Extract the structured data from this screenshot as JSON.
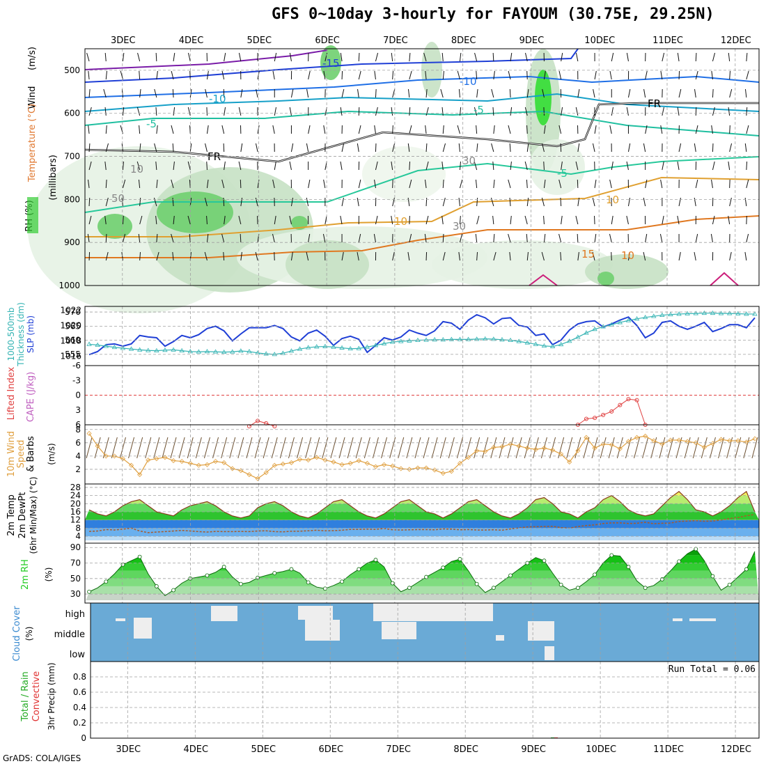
{
  "title": "GFS 0~10day 3-hourly for FAYOUM (30.75E, 29.25N)",
  "credit": "GrADS: COLA/IGES",
  "date_labels": [
    "3DEC",
    "4DEC",
    "5DEC",
    "6DEC",
    "7DEC",
    "8DEC",
    "9DEC",
    "10DEC",
    "11DEC",
    "12DEC"
  ],
  "colors": {
    "slp": "#1f3fd6",
    "thickness": "#33b3b3",
    "lifted_index": "#e04040",
    "cape": "#c060c0",
    "wind_speed": "#e0a040",
    "temp_fill_green": "#2ec42e",
    "temp_fill_yellow": "#f0f060",
    "dewpoint_fill": "#3a8ae0",
    "rh_fill": "#22cc22",
    "cloud_bg": "#6aaad6",
    "cloud_fill": "#eeeeee",
    "precip_rain": "#22aa22",
    "precip_conv": "#e03030"
  },
  "chart_data": [
    {
      "type": "heatmap",
      "panel": "upper-air",
      "ylabels_left": [
        "Wind",
        "(m/s)",
        "Temperature (°C)",
        "RH (%)"
      ],
      "ylabel": "(millibars)",
      "y_ticks": [
        500,
        600,
        700,
        800,
        900,
        1000
      ],
      "contour_labels": [
        "-15",
        "-10",
        "-10",
        "-5",
        "-5",
        "FR",
        "FR",
        "-5",
        "10",
        "10",
        "15",
        "10",
        "30",
        "10",
        "30",
        "50"
      ]
    },
    {
      "type": "line",
      "panel": "slp-thickness",
      "ylabels": [
        "1000-500mb",
        "Thickness (dm)",
        "SLP (mb)"
      ],
      "y_left_ticks": [
        555,
        560,
        565,
        570
      ],
      "y_right_ticks": [
        1016,
        1018,
        1020,
        1022
      ],
      "series": [
        {
          "name": "SLP (mb)",
          "values": [
            1016.2,
            1016.6,
            1017.5,
            1017.6,
            1017.3,
            1017.6,
            1018.7,
            1018.5,
            1018.4,
            1017.3,
            1017.9,
            1018.7,
            1018.4,
            1018.8,
            1019.6,
            1019.9,
            1019.3,
            1018.0,
            1018.9,
            1019.7,
            1019.7,
            1019.7,
            1020.0,
            1019.6,
            1018.5,
            1018.0,
            1019.0,
            1019.4,
            1018.6,
            1017.4,
            1018.3,
            1018.6,
            1018.2,
            1016.5,
            1017.4,
            1018.4,
            1018.1,
            1018.5,
            1019.4,
            1019.0,
            1018.7,
            1019.3,
            1020.5,
            1020.3,
            1019.5,
            1020.7,
            1021.4,
            1021.0,
            1020.2,
            1020.9,
            1021.0,
            1020.0,
            1019.8,
            1018.7,
            1018.9,
            1017.5,
            1018.1,
            1019.4,
            1020.2,
            1020.5,
            1020.6,
            1019.8,
            1020.2,
            1020.7,
            1021.1,
            1020.0,
            1018.4,
            1019.0,
            1020.4,
            1020.6,
            1019.9,
            1019.5,
            1019.9,
            1020.4,
            1019.2,
            1019.6,
            1020.1,
            1020.1,
            1019.7,
            1021.0
          ]
        },
        {
          "name": "Thickness (dm)",
          "values": [
            558.6,
            558.3,
            557.9,
            557.5,
            557.2,
            556.9,
            556.6,
            556.4,
            556.3,
            556.5,
            556.6,
            556.3,
            556.0,
            555.9,
            556.0,
            555.9,
            555.8,
            555.9,
            556.2,
            556.0,
            555.5,
            555.2,
            555.0,
            555.4,
            556.2,
            556.9,
            557.4,
            557.7,
            557.8,
            557.6,
            557.3,
            557.0,
            557.1,
            557.6,
            558.2,
            558.8,
            559.4,
            559.6,
            559.8,
            560.0,
            560.1,
            560.2,
            560.2,
            560.3,
            560.3,
            560.3,
            560.4,
            560.5,
            560.4,
            560.2,
            560.0,
            559.6,
            559.1,
            558.6,
            558.0,
            557.8,
            558.5,
            559.7,
            561.1,
            562.6,
            563.9,
            564.8,
            565.5,
            566.3,
            567.0,
            567.6,
            568.1,
            568.5,
            568.9,
            569.1,
            569.3,
            569.4,
            569.5,
            569.6,
            569.6,
            569.5,
            569.5,
            569.4,
            569.3,
            569.3
          ]
        }
      ]
    },
    {
      "type": "line",
      "panel": "lifted-index-cape",
      "ylabels": [
        "Lifted Index",
        "CAPE (J/kg)"
      ],
      "y_ticks": [
        "-6",
        "-3",
        "0",
        "3",
        "6"
      ],
      "series": [
        {
          "name": "Lifted Index",
          "values": [
            null,
            null,
            null,
            null,
            null,
            null,
            null,
            null,
            null,
            null,
            null,
            null,
            null,
            null,
            null,
            null,
            null,
            null,
            null,
            6.3,
            5.2,
            5.7,
            6.3,
            null,
            null,
            null,
            null,
            null,
            null,
            null,
            null,
            null,
            null,
            null,
            null,
            null,
            null,
            null,
            null,
            null,
            null,
            null,
            null,
            null,
            null,
            null,
            null,
            null,
            null,
            null,
            null,
            null,
            null,
            null,
            null,
            null,
            null,
            null,
            6.0,
            4.8,
            4.6,
            4.0,
            3.3,
            2.0,
            0.8,
            1.0,
            6.0,
            null,
            null,
            null,
            null,
            null,
            null,
            null,
            null,
            null,
            null,
            null,
            null,
            null
          ]
        }
      ]
    },
    {
      "type": "line",
      "panel": "10m-wind",
      "ylabels": [
        "10m Wind",
        "Speed",
        "& Barbs",
        "(m/s)"
      ],
      "y_ticks": [
        2,
        4,
        6,
        8
      ],
      "series": [
        {
          "name": "10m Wind Speed (m/s)",
          "values": [
            7.4,
            5.5,
            4.0,
            4.0,
            3.6,
            2.6,
            1.2,
            3.4,
            3.6,
            3.8,
            3.3,
            3.2,
            2.9,
            2.6,
            2.7,
            3.2,
            3.0,
            2.1,
            1.8,
            1.2,
            0.6,
            1.5,
            2.6,
            2.8,
            3.0,
            3.5,
            3.4,
            3.8,
            3.4,
            3.1,
            2.7,
            2.9,
            3.3,
            2.9,
            2.4,
            2.7,
            2.5,
            2.1,
            2.0,
            2.2,
            2.2,
            1.9,
            1.4,
            1.7,
            2.9,
            3.8,
            4.8,
            4.7,
            5.3,
            5.4,
            5.8,
            5.5,
            5.2,
            5.0,
            5.2,
            4.9,
            4.3,
            3.1,
            4.8,
            6.8,
            5.2,
            5.8,
            5.7,
            5.1,
            6.2,
            6.8,
            7.0,
            6.3,
            5.8,
            6.4,
            6.4,
            6.2,
            6.0,
            5.3,
            5.9,
            6.5,
            6.3,
            6.3,
            6.1,
            6.6
          ]
        }
      ]
    },
    {
      "type": "area",
      "panel": "2m-temp",
      "ylabels": [
        "2m Temp",
        "2m DewPt",
        "(6hr Min/Max) (°C)"
      ],
      "y_ticks": [
        4,
        8,
        12,
        16,
        20,
        24,
        28
      ],
      "series": [
        {
          "name": "2m Temp",
          "values": [
            17,
            15,
            14,
            16,
            19,
            21,
            22,
            19,
            16,
            15,
            14,
            17,
            19,
            20,
            21,
            19,
            16,
            14,
            13,
            14,
            18,
            20,
            21,
            19,
            16,
            14,
            13,
            15,
            18,
            21,
            22,
            19,
            16,
            14,
            13,
            15,
            18,
            21,
            22,
            19,
            16,
            15,
            13,
            15,
            18,
            21,
            22,
            19,
            16,
            14,
            13,
            15,
            18,
            22,
            23,
            20,
            16,
            15,
            13,
            16,
            18,
            22,
            24,
            21,
            17,
            15,
            14,
            15,
            19,
            23,
            26,
            22,
            17,
            16,
            14,
            16,
            19,
            23,
            26,
            16
          ]
        },
        {
          "name": "2m DewPt",
          "values": [
            6.4,
            6.6,
            7.3,
            7.1,
            7.5,
            8.0,
            6.6,
            5.8,
            6.1,
            6.3,
            6.6,
            6.9,
            6.6,
            6.3,
            6.1,
            6.4,
            6.3,
            6.3,
            6.4,
            6.3,
            6.6,
            6.7,
            6.3,
            6.2,
            6.5,
            6.5,
            6.7,
            7.0,
            6.7,
            6.8,
            7.0,
            7.4,
            7.4,
            7.5,
            7.4,
            7.8,
            7.2,
            7.1,
            7.2,
            7.3,
            7.3,
            7.2,
            7.6,
            7.5,
            7.2,
            7.3,
            7.1,
            7.1,
            7.2,
            7.0,
            7.6,
            8.1,
            8.6,
            8.7,
            8.8,
            8.9,
            8.3,
            8.0,
            8.8,
            9.3,
            9.6,
            10.3,
            10.6,
            10.6,
            10.3,
            10.4,
            10.9,
            10.2,
            10.4,
            10.5,
            11.3,
            11.5,
            11.7,
            11.4,
            11.5,
            12.0,
            12.7,
            13.2,
            14.1,
            14.7
          ]
        }
      ]
    },
    {
      "type": "area",
      "panel": "2m-rh",
      "ylabels": [
        "2m RH",
        "(%)"
      ],
      "y_ticks": [
        30,
        50,
        70,
        90
      ],
      "series": [
        {
          "name": "2m RH",
          "values": [
            33,
            38,
            46,
            56,
            68,
            73,
            78,
            56,
            40,
            28,
            35,
            44,
            50,
            52,
            54,
            58,
            65,
            52,
            43,
            45,
            51,
            54,
            57,
            59,
            62,
            57,
            45,
            39,
            37,
            41,
            46,
            55,
            62,
            70,
            74,
            65,
            44,
            33,
            38,
            45,
            52,
            58,
            64,
            72,
            75,
            60,
            43,
            32,
            38,
            46,
            54,
            62,
            70,
            77,
            73,
            57,
            42,
            35,
            38,
            46,
            55,
            70,
            80,
            79,
            65,
            47,
            38,
            41,
            49,
            60,
            72,
            82,
            88,
            73,
            53,
            35,
            42,
            52,
            62,
            85
          ]
        }
      ]
    },
    {
      "type": "heatmap",
      "panel": "cloud-cover",
      "ylabels": [
        "Cloud Cover",
        "(%)"
      ],
      "levels": [
        "high",
        "middle",
        "low"
      ]
    },
    {
      "type": "bar",
      "panel": "precip",
      "ylabels": [
        "Total / Rain",
        "Convective",
        "3hr Precip (mm)"
      ],
      "y_ticks": [
        "0",
        "0.2",
        "0.4",
        "0.6",
        "0.8"
      ],
      "annotation": "Run Total = 0.06",
      "series": [
        {
          "name": "Total / Rain",
          "index": 55,
          "value": 0.06
        },
        {
          "name": "Convective",
          "index": 55,
          "value": 0.03
        }
      ]
    }
  ]
}
